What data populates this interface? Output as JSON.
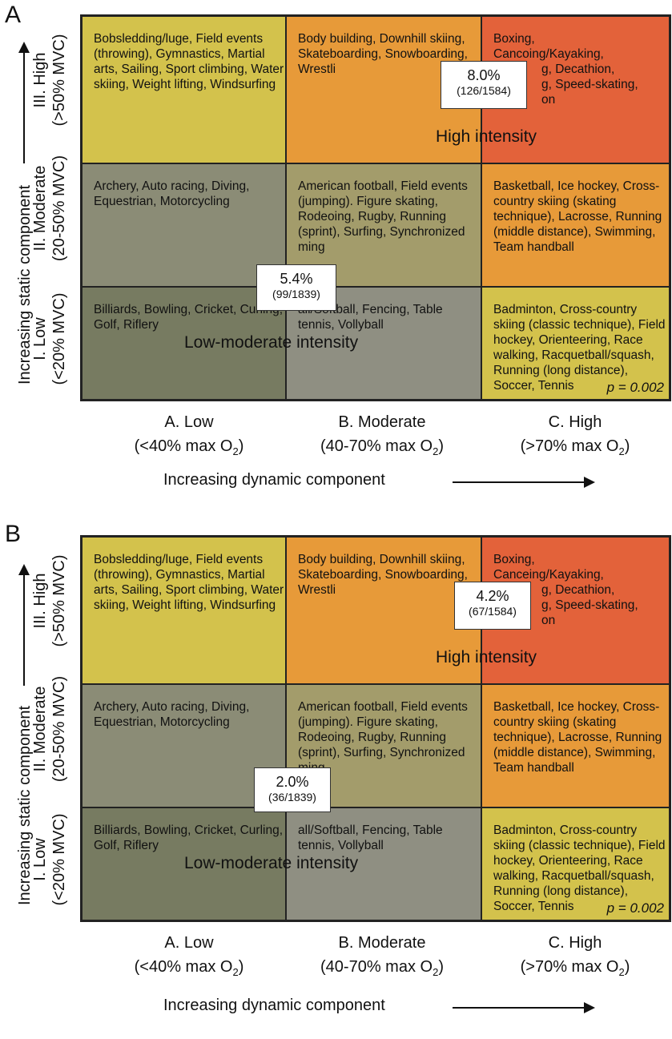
{
  "figure": {
    "row_labels": [
      {
        "line1": "III. High",
        "line2": "(>50% MVC)"
      },
      {
        "line1": "II. Moderate",
        "line2": "(20-50% MVC)"
      },
      {
        "line1": "I. Low",
        "line2": "(<20% MVC)"
      }
    ],
    "col_labels": [
      {
        "line1": "A. Low",
        "line2_pre": "(<40% max O",
        "sub": "2",
        "line2_post": ")"
      },
      {
        "line1": "B. Moderate",
        "line2_pre": "(40-70% max O",
        "sub": "2",
        "line2_post": ")"
      },
      {
        "line1": "C. High",
        "line2_pre": "(>70% max O",
        "sub": "2",
        "line2_post": ")"
      }
    ],
    "y_title": "Increasing static component",
    "x_title": "Increasing dynamic component",
    "high_intensity_label": "High intensity",
    "low_intensity_label": "Low-moderate intensity",
    "p_value": "p = 0.002",
    "cells": {
      "high_low": "Bobsledding/luge, Field events (throwing), Gymnastics, Martial arts, Sailing, Sport climbing, Water skiing, Weight lifting, Windsurfing",
      "high_mod": "Body building, Downhill skiing, Skateboarding, Snowboarding, Wrestli",
      "mod_low": "Archery, Auto racing, Diving, Equestrian, Motorcycling",
      "mod_mod": "American football, Field events (jumping). Figure skating, Rodeoing, Rugby, Running (sprint), Surfing, Synchronized ming",
      "mod_high": "Basketball, Ice hockey, Cross-country skiing (skating technique), Lacrosse, Running (middle distance), Swimming, Team handball",
      "low_low": "Billiards, Bowling, Cricket, Curling, Golf, Riflery",
      "low_mod": "all/Softball, Fencing, Table tennis, Vollyball",
      "low_high": "Badminton, Cross-country skiing (classic technique), Field hockey, Orienteering, Race walking, Racquetball/squash, Running (long distance), Soccer, Tennis"
    }
  },
  "panelA": {
    "label": "A",
    "high_low_lines": [
      "Boxing,",
      "Cancoing/Kayaking,",
      "g, Decathion,",
      "g, Speed-skating,",
      "on"
    ],
    "high_pct": "8.0%",
    "high_count": "(126/1584)",
    "low_pct": "5.4%",
    "low_count": "(99/1839)",
    "colors": {
      "high_low": "#d3c24c",
      "high_mod": "#e79a39",
      "high_high": "#e3623a",
      "mod_low": "#8b8c76",
      "mod_mod": "#a39c6b",
      "mod_high": "#e79a39",
      "low_low": "#777b61",
      "low_mod": "#8f8f82",
      "low_high": "#d3c24c"
    }
  },
  "panelB": {
    "label": "B",
    "high_low_lines": [
      "Boxing,",
      "Canceing/Kayaking,",
      "g, Decathion,",
      "g, Speed-skating,",
      "on"
    ],
    "high_pct": "4.2%",
    "high_count": "(67/1584)",
    "low_pct": "2.0%",
    "low_count": "(36/1839)",
    "colors": {
      "high_low": "#d3c24c",
      "high_mod": "#e79a39",
      "high_high": "#e3623a",
      "mod_low": "#8b8c76",
      "mod_mod": "#a39c6b",
      "mod_high": "#e79a39",
      "low_low": "#777b61",
      "low_mod": "#8f8f82",
      "low_high": "#d3c24c"
    }
  }
}
